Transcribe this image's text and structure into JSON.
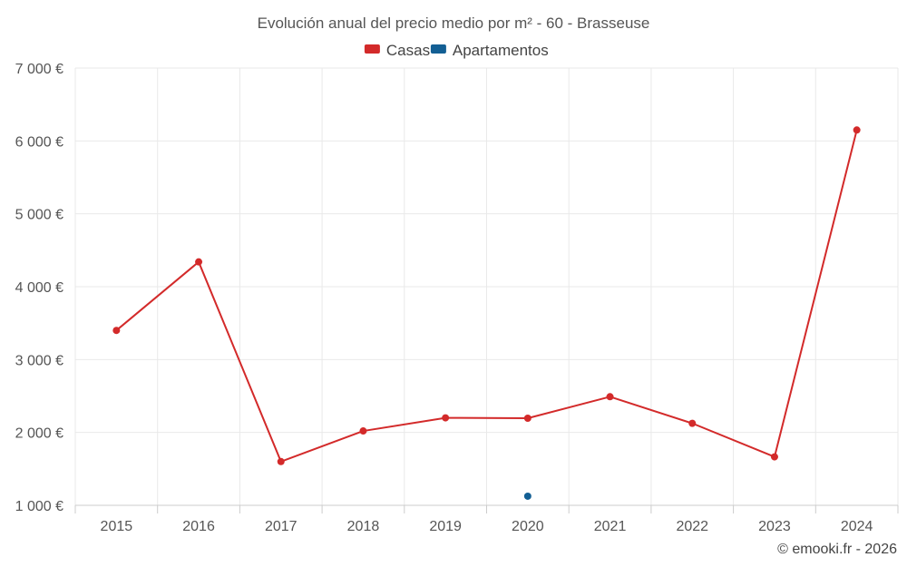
{
  "chart_data": {
    "type": "line",
    "title": "Evolución anual del precio medio por m² - 60 - Brasseuse",
    "categories": [
      "2015",
      "2016",
      "2017",
      "2018",
      "2019",
      "2020",
      "2021",
      "2022",
      "2023",
      "2024"
    ],
    "series": [
      {
        "name": "Casas",
        "color": "#d32a2a",
        "values": [
          3400,
          4340,
          1600,
          2020,
          2200,
          2195,
          2490,
          2125,
          1665,
          6150
        ]
      },
      {
        "name": "Apartamentos",
        "color": "#135f94",
        "values": [
          null,
          null,
          null,
          null,
          null,
          1125,
          null,
          null,
          null,
          null
        ]
      }
    ],
    "ylim": [
      1000,
      7000
    ],
    "yticks": [
      1000,
      2000,
      3000,
      4000,
      5000,
      6000,
      7000
    ],
    "ytick_labels": [
      "1 000 €",
      "2 000 €",
      "3 000 €",
      "4 000 €",
      "5 000 €",
      "6 000 €",
      "7 000 €"
    ],
    "xlabel": "",
    "ylabel": "",
    "grid": true,
    "legend_position": "top-center"
  },
  "credit": "© emooki.fr - 2026"
}
